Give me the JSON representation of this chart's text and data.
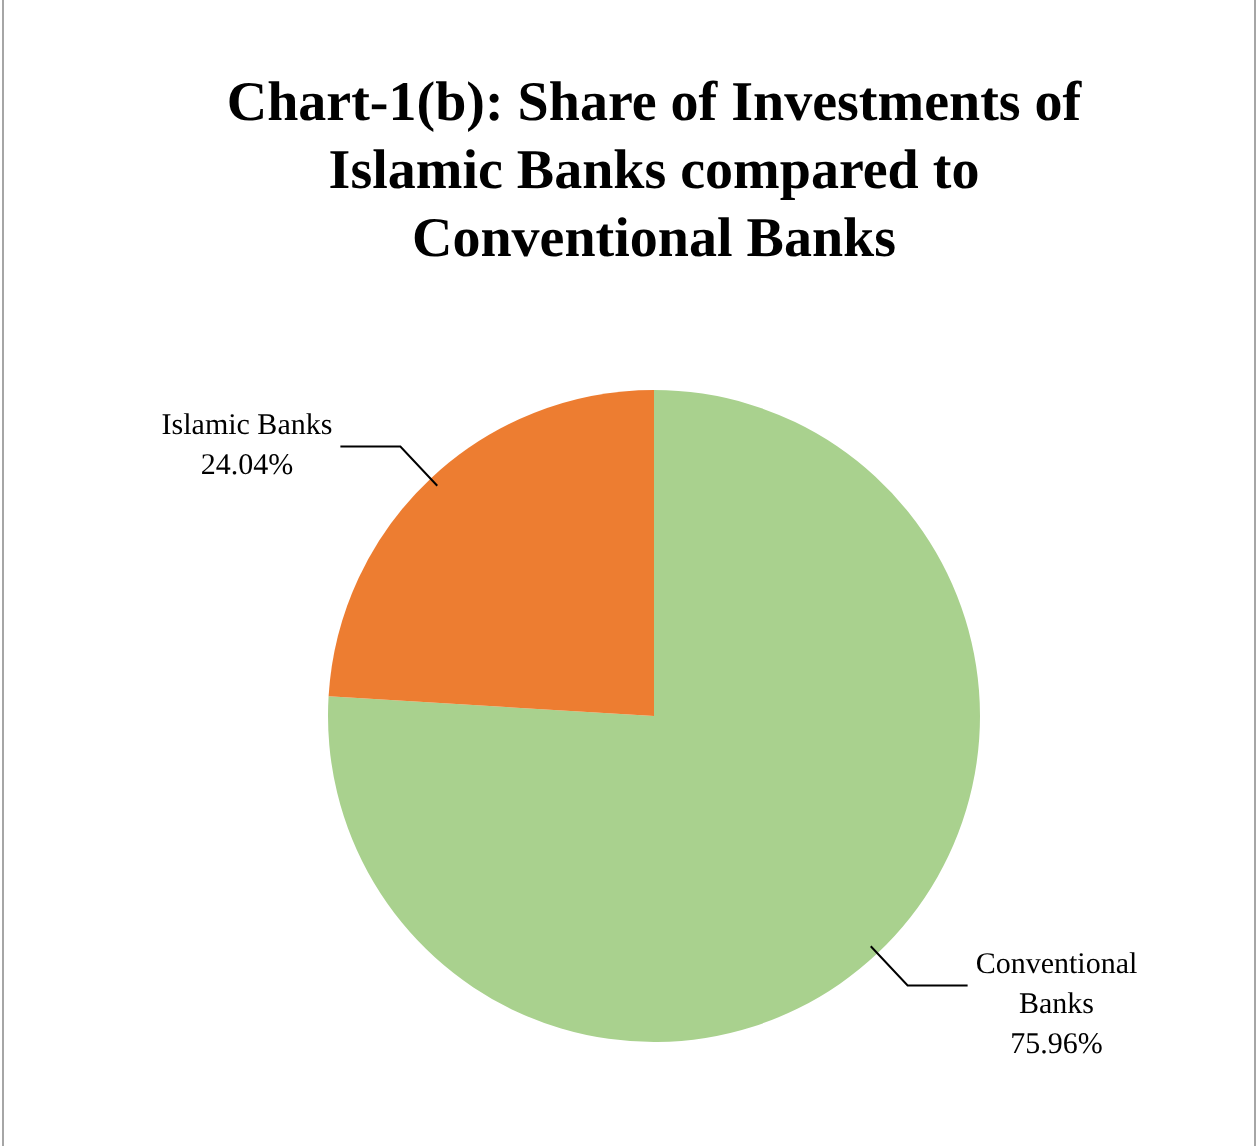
{
  "chart_data": {
    "type": "pie",
    "title": "Chart-1(b): Share of Investments of Islamic Banks compared to Conventional Banks",
    "categories": [
      "Conventional Banks",
      "Islamic Banks"
    ],
    "values": [
      75.96,
      24.04
    ],
    "colors": [
      "#a9d18e",
      "#ed7d31"
    ],
    "value_labels": [
      "75.96%",
      "24.04%"
    ],
    "legend": false
  }
}
